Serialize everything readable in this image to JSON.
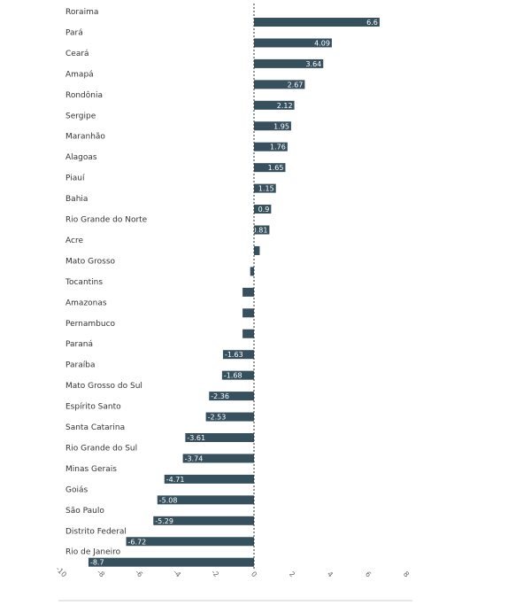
{
  "chart_data": {
    "type": "bar",
    "orientation": "horizontal",
    "categories": [
      "Roraima",
      "Pará",
      "Ceará",
      "Amapá",
      "Rondônia",
      "Sergipe",
      "Maranhão",
      "Alagoas",
      "Piauí",
      "Bahia",
      "Rio Grande do Norte",
      "Acre",
      "Mato Grosso",
      "Tocantins",
      "Amazonas",
      "Pernambuco",
      "Paraná",
      "Paraíba",
      "Mato Grosso do Sul",
      "Espírito Santo",
      "Santa Catarina",
      "Rio Grande do Sul",
      "Minas Gerais",
      "Goiás",
      "São Paulo",
      "Distrito Federal",
      "Rio de Janeiro"
    ],
    "values": [
      6.6,
      4.09,
      3.64,
      2.67,
      2.12,
      1.95,
      1.76,
      1.65,
      1.15,
      0.9,
      0.81,
      0.3,
      -0.2,
      -0.6,
      -0.6,
      -0.6,
      -1.63,
      -1.68,
      -2.36,
      -2.53,
      -3.61,
      -3.74,
      -4.71,
      -5.08,
      -5.29,
      -6.72,
      -8.7
    ],
    "value_labels": [
      "6.6",
      "4.09",
      "3.64",
      "2.67",
      "2.12",
      "1.95",
      "1.76",
      "1.65",
      "1.15",
      "0.9",
      "0.81",
      "",
      "",
      "",
      "",
      "",
      "-1.63",
      "-1.68",
      "-2.36",
      "-2.53",
      "-3.61",
      "-3.74",
      "-4.71",
      "-5.08",
      "-5.29",
      "-6.72",
      "-8.7"
    ],
    "xlim": [
      -10,
      8
    ],
    "x_ticks": [
      -10,
      -8,
      -6,
      -4,
      -2,
      0,
      2,
      4,
      6,
      8
    ],
    "x_tick_labels": [
      "-10",
      "-8",
      "-6",
      "-4",
      "-2",
      "0",
      "2",
      "4",
      "6",
      "8"
    ],
    "title": "",
    "xlabel": "",
    "ylabel": "",
    "grid": false,
    "zero_line": "dashed",
    "bar_color": "#37505e",
    "value_label_color": "#ffffff"
  }
}
